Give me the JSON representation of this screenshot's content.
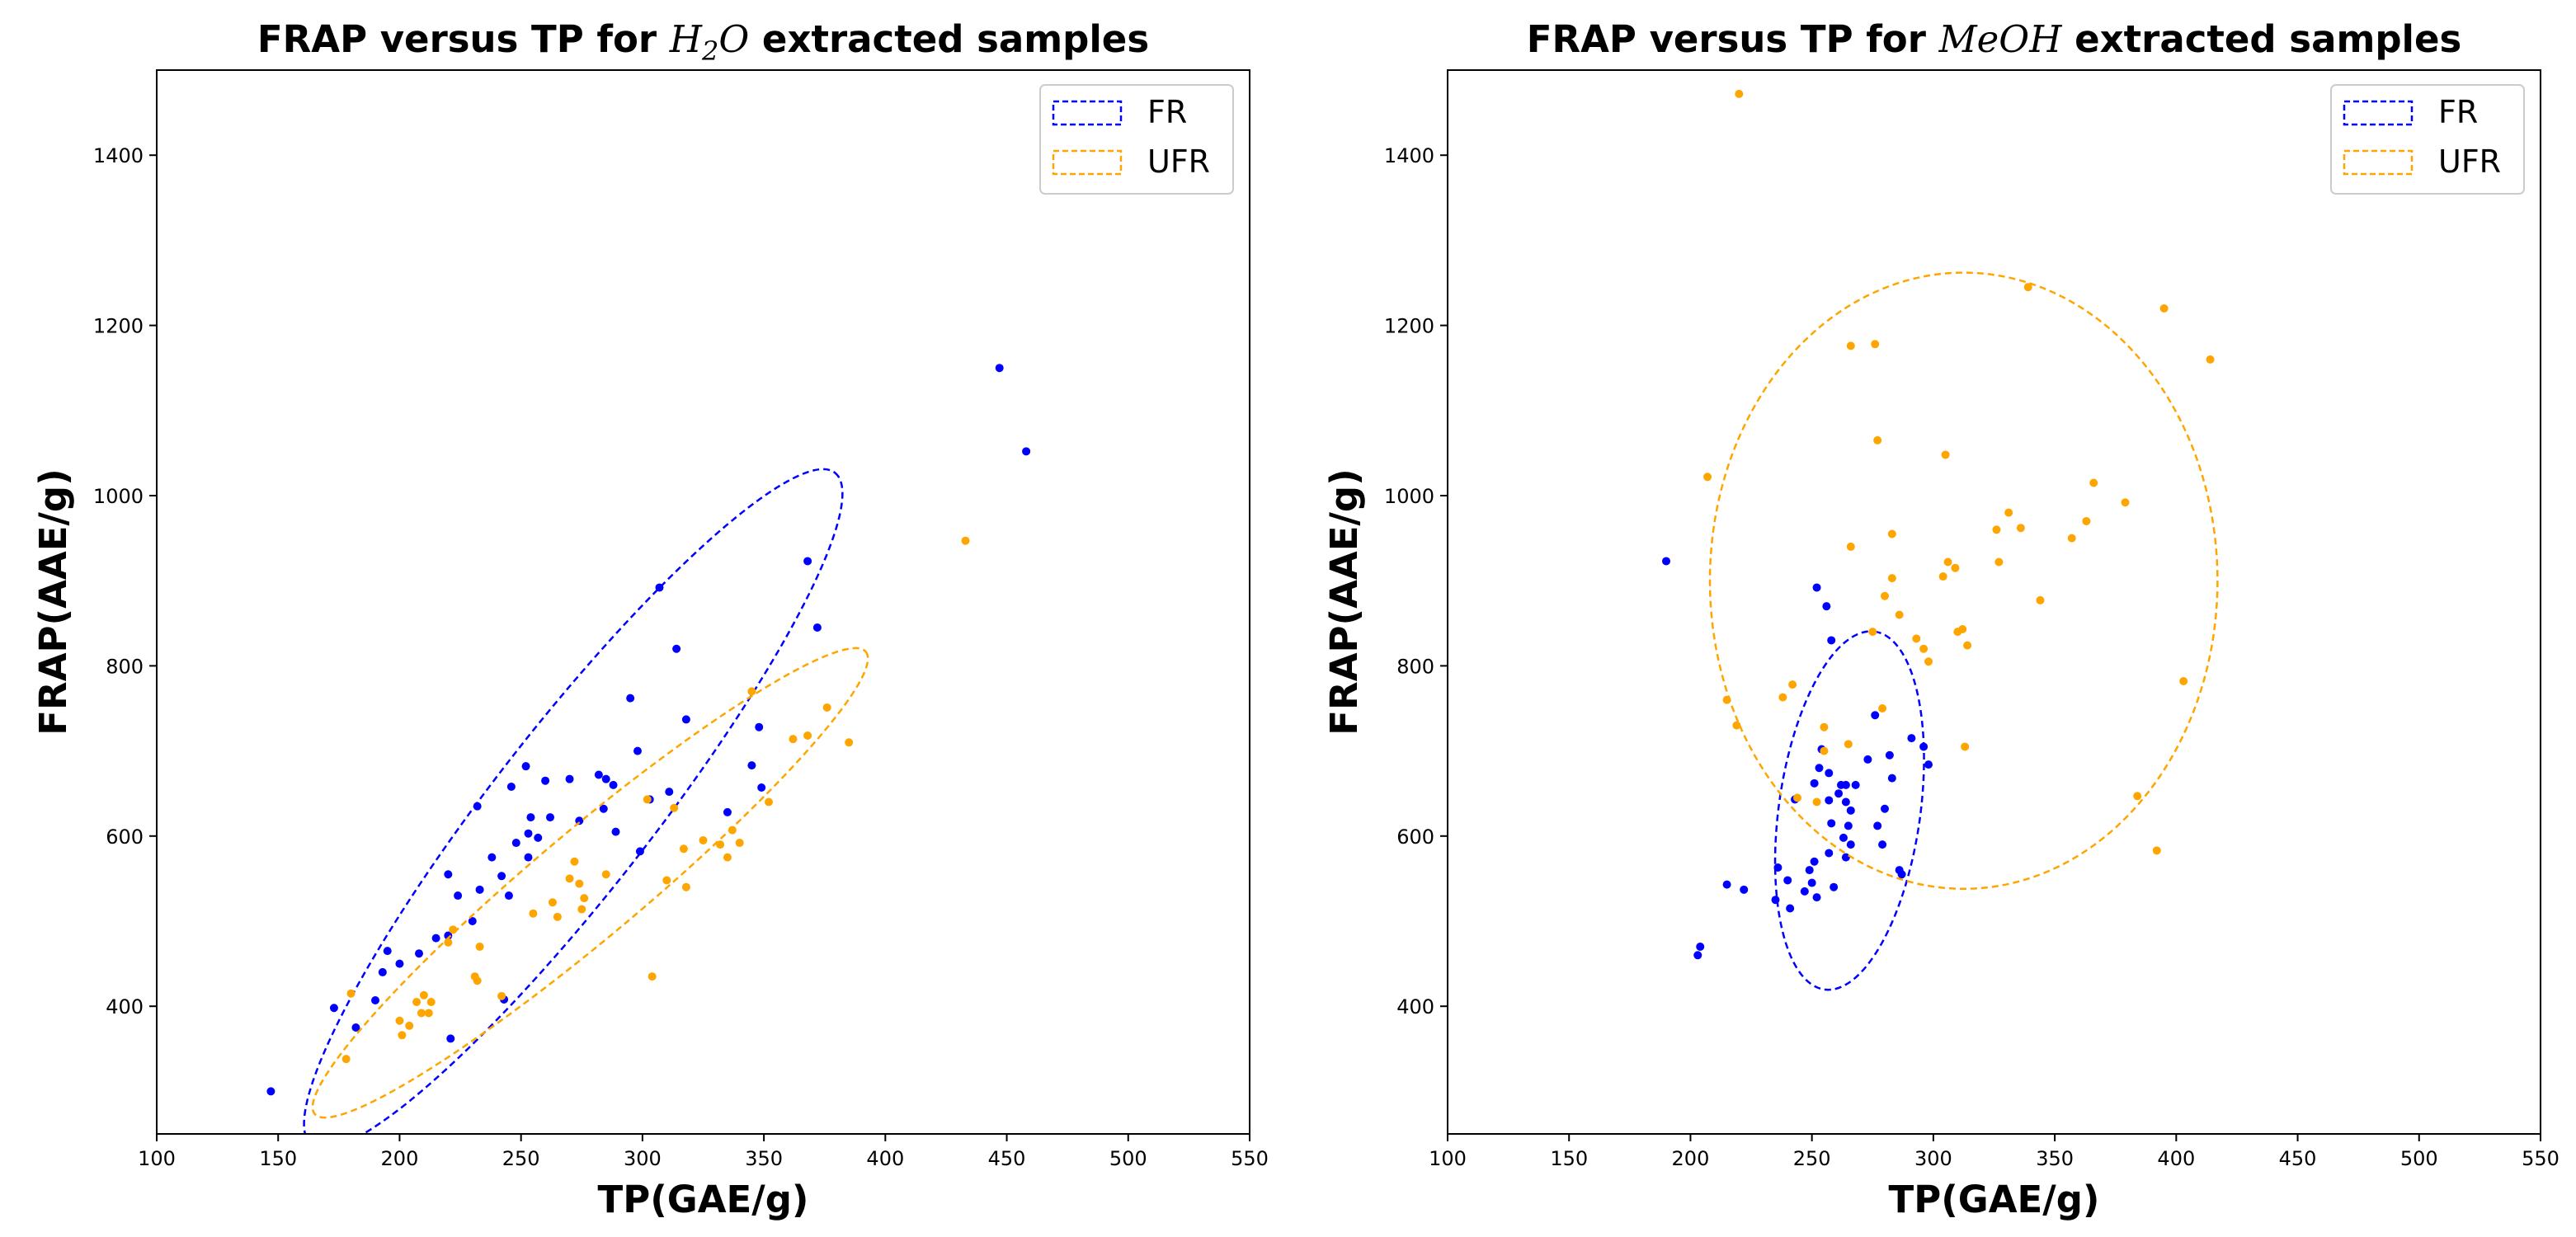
{
  "colors": {
    "FR": "#0000ff",
    "UFR": "#ffa500",
    "axis": "#000000",
    "background": "#ffffff"
  },
  "chart_data": [
    {
      "type": "scatter",
      "title": {
        "prefix": "FRAP versus TP for ",
        "math_main": "H",
        "math_sub": "2",
        "math_tail": "O",
        "suffix": " extracted samples"
      },
      "xlabel": "TP(GAE/g)",
      "ylabel": "FRAP(AAE/g)",
      "xlim": [
        100,
        550
      ],
      "ylim": [
        250,
        1500
      ],
      "xticks": [
        100,
        150,
        200,
        250,
        300,
        350,
        400,
        450,
        500,
        550
      ],
      "yticks": [
        400,
        600,
        800,
        1000,
        1200,
        1400
      ],
      "grid": false,
      "legend": {
        "position": "top-right",
        "entries": [
          "FR",
          "UFR"
        ]
      },
      "series": [
        {
          "name": "FR",
          "color": "#0000ff",
          "points": [
            [
              147,
              300
            ],
            [
              173,
              398
            ],
            [
              182,
              375
            ],
            [
              190,
              407
            ],
            [
              193,
              440
            ],
            [
              195,
              465
            ],
            [
              200,
              450
            ],
            [
              208,
              462
            ],
            [
              215,
              480
            ],
            [
              220,
              555
            ],
            [
              220,
              483
            ],
            [
              221,
              362
            ],
            [
              224,
              530
            ],
            [
              230,
              500
            ],
            [
              232,
              635
            ],
            [
              233,
              537
            ],
            [
              238,
              575
            ],
            [
              242,
              553
            ],
            [
              243,
              408
            ],
            [
              245,
              530
            ],
            [
              246,
              658
            ],
            [
              248,
              592
            ],
            [
              252,
              682
            ],
            [
              253,
              575
            ],
            [
              253,
              603
            ],
            [
              254,
              622
            ],
            [
              257,
              598
            ],
            [
              260,
              665
            ],
            [
              262,
              622
            ],
            [
              270,
              667
            ],
            [
              274,
              618
            ],
            [
              282,
              672
            ],
            [
              284,
              632
            ],
            [
              285,
              667
            ],
            [
              288,
              660
            ],
            [
              289,
              605
            ],
            [
              295,
              762
            ],
            [
              298,
              700
            ],
            [
              299,
              582
            ],
            [
              303,
              643
            ],
            [
              307,
              892
            ],
            [
              311,
              652
            ],
            [
              314,
              820
            ],
            [
              318,
              737
            ],
            [
              335,
              628
            ],
            [
              345,
              683
            ],
            [
              348,
              728
            ],
            [
              349,
              657
            ],
            [
              368,
              923
            ],
            [
              372,
              845
            ],
            [
              447,
              1150
            ],
            [
              458,
              1052
            ]
          ],
          "ellipse": {
            "cx": 271.5,
            "cy": 632,
            "rx": 294.5,
            "ry": 43.7,
            "angle_deg": 52.1
          }
        },
        {
          "name": "UFR",
          "color": "#ffa500",
          "points": [
            [
              178,
              338
            ],
            [
              180,
              415
            ],
            [
              200,
              383
            ],
            [
              201,
              366
            ],
            [
              204,
              377
            ],
            [
              207,
              405
            ],
            [
              209,
              392
            ],
            [
              210,
              413
            ],
            [
              212,
              392
            ],
            [
              213,
              405
            ],
            [
              220,
              475
            ],
            [
              222,
              490
            ],
            [
              231,
              435
            ],
            [
              232,
              430
            ],
            [
              233,
              470
            ],
            [
              242,
              412
            ],
            [
              255,
              509
            ],
            [
              263,
              522
            ],
            [
              265,
              505
            ],
            [
              270,
              550
            ],
            [
              272,
              570
            ],
            [
              274,
              544
            ],
            [
              275,
              514
            ],
            [
              276,
              527
            ],
            [
              285,
              555
            ],
            [
              302,
              643
            ],
            [
              304,
              435
            ],
            [
              310,
              548
            ],
            [
              313,
              633
            ],
            [
              317,
              585
            ],
            [
              318,
              540
            ],
            [
              325,
              595
            ],
            [
              332,
              590
            ],
            [
              335,
              575
            ],
            [
              337,
              607
            ],
            [
              340,
              592
            ],
            [
              345,
              770
            ],
            [
              352,
              640
            ],
            [
              362,
              714
            ],
            [
              368,
              718
            ],
            [
              376,
              751
            ],
            [
              385,
              710
            ],
            [
              433,
              947
            ]
          ],
          "ellipse": {
            "cx": 278.5,
            "cy": 545,
            "rx": 202.4,
            "ry": 35.6,
            "angle_deg": 40.0
          }
        }
      ]
    },
    {
      "type": "scatter",
      "title": {
        "prefix": "FRAP versus TP for ",
        "math_main": "MeOH",
        "math_sub": "",
        "math_tail": "",
        "suffix": " extracted samples"
      },
      "xlabel": "TP(GAE/g)",
      "ylabel": "FRAP(AAE/g)",
      "xlim": [
        100,
        550
      ],
      "ylim": [
        250,
        1500
      ],
      "xticks": [
        100,
        150,
        200,
        250,
        300,
        350,
        400,
        450,
        500,
        550
      ],
      "yticks": [
        400,
        600,
        800,
        1000,
        1200,
        1400
      ],
      "grid": false,
      "legend": {
        "position": "top-right",
        "entries": [
          "FR",
          "UFR"
        ]
      },
      "series": [
        {
          "name": "FR",
          "color": "#0000ff",
          "points": [
            [
              190,
              923
            ],
            [
              203,
              460
            ],
            [
              204,
              470
            ],
            [
              215,
              543
            ],
            [
              222,
              537
            ],
            [
              235,
              525
            ],
            [
              236,
              563
            ],
            [
              240,
              548
            ],
            [
              241,
              515
            ],
            [
              243,
              643
            ],
            [
              247,
              535
            ],
            [
              249,
              560
            ],
            [
              250,
              545
            ],
            [
              251,
              570
            ],
            [
              251,
              662
            ],
            [
              252,
              528
            ],
            [
              252,
              892
            ],
            [
              253,
              680
            ],
            [
              254,
              702
            ],
            [
              256,
              870
            ],
            [
              257,
              580
            ],
            [
              257,
              642
            ],
            [
              257,
              674
            ],
            [
              258,
              615
            ],
            [
              258,
              830
            ],
            [
              259,
              540
            ],
            [
              261,
              650
            ],
            [
              262,
              660
            ],
            [
              263,
              598
            ],
            [
              264,
              575
            ],
            [
              264,
              640
            ],
            [
              264,
              660
            ],
            [
              265,
              612
            ],
            [
              266,
              590
            ],
            [
              266,
              630
            ],
            [
              268,
              660
            ],
            [
              273,
              690
            ],
            [
              276,
              742
            ],
            [
              277,
              612
            ],
            [
              279,
              590
            ],
            [
              280,
              632
            ],
            [
              282,
              695
            ],
            [
              283,
              668
            ],
            [
              286,
              560
            ],
            [
              287,
              555
            ],
            [
              291,
              715
            ],
            [
              296,
              705
            ],
            [
              298,
              684
            ]
          ],
          "ellipse": {
            "cx": 265.5,
            "cy": 630,
            "rx": 205,
            "ry": 29.5,
            "angle_deg": 82.0
          }
        },
        {
          "name": "UFR",
          "color": "#ffa500",
          "points": [
            [
              207,
              1022
            ],
            [
              215,
              760
            ],
            [
              219,
              730
            ],
            [
              220,
              1472
            ],
            [
              238,
              763
            ],
            [
              242,
              778
            ],
            [
              244,
              645
            ],
            [
              252,
              640
            ],
            [
              255,
              728
            ],
            [
              255,
              700
            ],
            [
              265,
              708
            ],
            [
              266,
              940
            ],
            [
              266,
              1176
            ],
            [
              275,
              840
            ],
            [
              276,
              1178
            ],
            [
              277,
              1065
            ],
            [
              279,
              750
            ],
            [
              280,
              882
            ],
            [
              283,
              955
            ],
            [
              283,
              903
            ],
            [
              286,
              860
            ],
            [
              293,
              832
            ],
            [
              296,
              820
            ],
            [
              298,
              805
            ],
            [
              305,
              1048
            ],
            [
              304,
              905
            ],
            [
              306,
              922
            ],
            [
              309,
              915
            ],
            [
              310,
              840
            ],
            [
              312,
              843
            ],
            [
              313,
              705
            ],
            [
              314,
              824
            ],
            [
              326,
              960
            ],
            [
              327,
              922
            ],
            [
              331,
              980
            ],
            [
              336,
              962
            ],
            [
              339,
              1245
            ],
            [
              344,
              877
            ],
            [
              357,
              950
            ],
            [
              363,
              970
            ],
            [
              366,
              1015
            ],
            [
              379,
              992
            ],
            [
              384,
              647
            ],
            [
              392,
              583
            ],
            [
              395,
              1220
            ],
            [
              403,
              782
            ],
            [
              414,
              1160
            ]
          ],
          "ellipse": {
            "cx": 312.5,
            "cy": 900,
            "rx": 104.5,
            "ry": 362,
            "angle_deg": 0.0
          }
        }
      ]
    }
  ]
}
